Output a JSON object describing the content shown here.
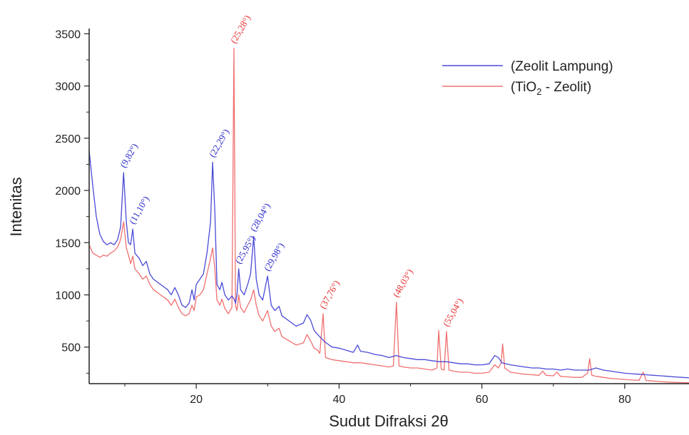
{
  "chart_data": {
    "type": "line",
    "title": "",
    "xlabel": "Sudut Difraksi 2θ",
    "ylabel": "Intenitas",
    "xlim": [
      5,
      89
    ],
    "ylim": [
      150,
      3550
    ],
    "x_ticks": [
      20,
      40,
      60,
      80
    ],
    "y_ticks": [
      500,
      1000,
      1500,
      2000,
      2500,
      3000,
      3500
    ],
    "grid": false,
    "legend_position": "top-right",
    "legend": [
      {
        "label": "(Zeolit Lampung)",
        "color": "#4a4ad8"
      },
      {
        "label_prefix": "(TiO",
        "label_sub": "2",
        "label_suffix": " - Zeolit)",
        "color": "#f07070"
      }
    ],
    "series": [
      {
        "name": "(Zeolit Lampung)",
        "color": "#4a4ad8",
        "points": [
          [
            5.0,
            2380
          ],
          [
            5.5,
            2050
          ],
          [
            6.0,
            1750
          ],
          [
            6.5,
            1580
          ],
          [
            7.0,
            1510
          ],
          [
            7.5,
            1480
          ],
          [
            8.0,
            1500
          ],
          [
            8.5,
            1480
          ],
          [
            9.0,
            1530
          ],
          [
            9.4,
            1650
          ],
          [
            9.82,
            2170
          ],
          [
            10.2,
            1700
          ],
          [
            10.5,
            1500
          ],
          [
            10.8,
            1480
          ],
          [
            11.1,
            1630
          ],
          [
            11.4,
            1400
          ],
          [
            12.0,
            1350
          ],
          [
            12.5,
            1280
          ],
          [
            13.0,
            1320
          ],
          [
            13.5,
            1200
          ],
          [
            14.0,
            1150
          ],
          [
            15.0,
            1100
          ],
          [
            16.0,
            1050
          ],
          [
            16.5,
            1000
          ],
          [
            17.0,
            1070
          ],
          [
            17.5,
            1000
          ],
          [
            18.0,
            900
          ],
          [
            18.5,
            880
          ],
          [
            19.0,
            920
          ],
          [
            19.4,
            1050
          ],
          [
            19.7,
            950
          ],
          [
            20.0,
            1100
          ],
          [
            20.5,
            1150
          ],
          [
            21.0,
            1200
          ],
          [
            21.5,
            1400
          ],
          [
            22.0,
            1700
          ],
          [
            22.29,
            2270
          ],
          [
            22.6,
            1800
          ],
          [
            22.9,
            1100
          ],
          [
            23.3,
            1050
          ],
          [
            23.6,
            1120
          ],
          [
            24.0,
            1000
          ],
          [
            24.5,
            950
          ],
          [
            25.0,
            990
          ],
          [
            25.3,
            960
          ],
          [
            25.5,
            920
          ],
          [
            25.7,
            1000
          ],
          [
            25.95,
            1250
          ],
          [
            26.2,
            1050
          ],
          [
            26.7,
            1000
          ],
          [
            27.2,
            1100
          ],
          [
            27.6,
            1200
          ],
          [
            28.04,
            1560
          ],
          [
            28.4,
            1150
          ],
          [
            28.8,
            1000
          ],
          [
            29.3,
            950
          ],
          [
            29.98,
            1180
          ],
          [
            30.5,
            900
          ],
          [
            31.0,
            850
          ],
          [
            31.6,
            890
          ],
          [
            32.0,
            800
          ],
          [
            33.0,
            750
          ],
          [
            34.0,
            700
          ],
          [
            35.0,
            730
          ],
          [
            35.5,
            810
          ],
          [
            36.0,
            760
          ],
          [
            36.5,
            660
          ],
          [
            37.0,
            620
          ],
          [
            38.0,
            550
          ],
          [
            39.0,
            500
          ],
          [
            40.0,
            490
          ],
          [
            41.0,
            470
          ],
          [
            42.0,
            450
          ],
          [
            42.6,
            520
          ],
          [
            43.0,
            460
          ],
          [
            44.0,
            450
          ],
          [
            45.0,
            430
          ],
          [
            46.0,
            420
          ],
          [
            47.0,
            400
          ],
          [
            48.0,
            420
          ],
          [
            49.0,
            400
          ],
          [
            50.0,
            390
          ],
          [
            51.0,
            380
          ],
          [
            52.0,
            380
          ],
          [
            53.0,
            370
          ],
          [
            54.0,
            360
          ],
          [
            55.0,
            360
          ],
          [
            56.0,
            350
          ],
          [
            57.0,
            340
          ],
          [
            58.0,
            340
          ],
          [
            59.0,
            330
          ],
          [
            60.0,
            330
          ],
          [
            61.0,
            340
          ],
          [
            61.8,
            420
          ],
          [
            62.3,
            400
          ],
          [
            62.8,
            350
          ],
          [
            64.0,
            330
          ],
          [
            65.0,
            320
          ],
          [
            66.0,
            310
          ],
          [
            67.0,
            300
          ],
          [
            68.0,
            300
          ],
          [
            69.0,
            290
          ],
          [
            70.0,
            290
          ],
          [
            71.0,
            280
          ],
          [
            72.0,
            290
          ],
          [
            73.0,
            280
          ],
          [
            74.0,
            280
          ],
          [
            75.0,
            280
          ],
          [
            76.0,
            300
          ],
          [
            77.0,
            280
          ],
          [
            78.0,
            270
          ],
          [
            79.0,
            260
          ],
          [
            80.0,
            250
          ],
          [
            81.0,
            245
          ],
          [
            82.0,
            240
          ],
          [
            83.0,
            235
          ],
          [
            84.0,
            230
          ],
          [
            85.0,
            225
          ],
          [
            86.0,
            220
          ],
          [
            87.0,
            215
          ],
          [
            88.0,
            210
          ],
          [
            89.0,
            205
          ]
        ]
      },
      {
        "name": "(TiO₂ - Zeolit)",
        "color": "#f07070",
        "points": [
          [
            5.0,
            1480
          ],
          [
            5.5,
            1400
          ],
          [
            6.0,
            1380
          ],
          [
            6.5,
            1360
          ],
          [
            7.0,
            1380
          ],
          [
            7.5,
            1370
          ],
          [
            8.0,
            1400
          ],
          [
            8.5,
            1420
          ],
          [
            9.0,
            1460
          ],
          [
            9.4,
            1530
          ],
          [
            9.82,
            1700
          ],
          [
            10.2,
            1450
          ],
          [
            10.5,
            1380
          ],
          [
            10.8,
            1300
          ],
          [
            11.1,
            1370
          ],
          [
            11.4,
            1250
          ],
          [
            12.0,
            1200
          ],
          [
            12.5,
            1150
          ],
          [
            13.0,
            1180
          ],
          [
            13.5,
            1100
          ],
          [
            14.0,
            1050
          ],
          [
            15.0,
            1000
          ],
          [
            16.0,
            950
          ],
          [
            16.5,
            900
          ],
          [
            17.0,
            960
          ],
          [
            17.5,
            880
          ],
          [
            18.0,
            820
          ],
          [
            18.5,
            800
          ],
          [
            19.0,
            820
          ],
          [
            19.4,
            900
          ],
          [
            19.7,
            850
          ],
          [
            20.0,
            980
          ],
          [
            20.5,
            1000
          ],
          [
            21.0,
            1050
          ],
          [
            21.5,
            1200
          ],
          [
            22.0,
            1350
          ],
          [
            22.29,
            1450
          ],
          [
            22.6,
            1250
          ],
          [
            22.9,
            950
          ],
          [
            23.3,
            900
          ],
          [
            23.6,
            960
          ],
          [
            24.0,
            870
          ],
          [
            24.5,
            820
          ],
          [
            25.0,
            880
          ],
          [
            25.28,
            3360
          ],
          [
            25.5,
            900
          ],
          [
            25.7,
            850
          ],
          [
            25.95,
            1000
          ],
          [
            26.2,
            880
          ],
          [
            26.7,
            830
          ],
          [
            27.2,
            900
          ],
          [
            27.6,
            950
          ],
          [
            28.04,
            1050
          ],
          [
            28.4,
            900
          ],
          [
            28.8,
            800
          ],
          [
            29.3,
            750
          ],
          [
            29.98,
            850
          ],
          [
            30.5,
            700
          ],
          [
            31.0,
            650
          ],
          [
            31.6,
            680
          ],
          [
            32.0,
            600
          ],
          [
            33.0,
            560
          ],
          [
            34.0,
            520
          ],
          [
            35.0,
            540
          ],
          [
            35.5,
            620
          ],
          [
            36.0,
            560
          ],
          [
            36.5,
            490
          ],
          [
            37.0,
            470
          ],
          [
            37.3,
            440
          ],
          [
            37.76,
            820
          ],
          [
            38.1,
            400
          ],
          [
            39.0,
            380
          ],
          [
            40.0,
            370
          ],
          [
            41.0,
            360
          ],
          [
            42.0,
            350
          ],
          [
            43.0,
            350
          ],
          [
            44.0,
            340
          ],
          [
            45.0,
            330
          ],
          [
            46.0,
            320
          ],
          [
            47.0,
            310
          ],
          [
            47.6,
            320
          ],
          [
            48.03,
            930
          ],
          [
            48.4,
            320
          ],
          [
            49.0,
            310
          ],
          [
            50.0,
            300
          ],
          [
            51.0,
            300
          ],
          [
            52.0,
            290
          ],
          [
            53.0,
            280
          ],
          [
            53.7,
            300
          ],
          [
            53.95,
            660
          ],
          [
            54.3,
            290
          ],
          [
            54.7,
            280
          ],
          [
            55.04,
            650
          ],
          [
            55.4,
            280
          ],
          [
            56.0,
            270
          ],
          [
            57.0,
            260
          ],
          [
            58.0,
            260
          ],
          [
            59.0,
            250
          ],
          [
            60.0,
            250
          ],
          [
            61.0,
            260
          ],
          [
            61.8,
            330
          ],
          [
            62.3,
            300
          ],
          [
            62.7,
            350
          ],
          [
            62.9,
            530
          ],
          [
            63.2,
            300
          ],
          [
            64.0,
            260
          ],
          [
            65.0,
            250
          ],
          [
            66.0,
            240
          ],
          [
            67.0,
            235
          ],
          [
            68.0,
            230
          ],
          [
            68.5,
            270
          ],
          [
            69.0,
            230
          ],
          [
            70.0,
            225
          ],
          [
            70.5,
            260
          ],
          [
            71.0,
            220
          ],
          [
            72.0,
            215
          ],
          [
            73.0,
            210
          ],
          [
            74.0,
            210
          ],
          [
            74.8,
            250
          ],
          [
            75.1,
            390
          ],
          [
            75.4,
            230
          ],
          [
            76.0,
            220
          ],
          [
            77.0,
            210
          ],
          [
            78.0,
            200
          ],
          [
            79.0,
            195
          ],
          [
            80.0,
            190
          ],
          [
            81.0,
            185
          ],
          [
            82.0,
            182
          ],
          [
            82.6,
            260
          ],
          [
            83.0,
            180
          ],
          [
            84.0,
            175
          ],
          [
            85.0,
            170
          ],
          [
            86.0,
            165
          ],
          [
            87.0,
            162
          ],
          [
            88.0,
            160
          ],
          [
            89.0,
            158
          ]
        ]
      }
    ],
    "annotations": [
      {
        "text": "(9,82°)",
        "x": 9.82,
        "y": 2170,
        "series": "blue"
      },
      {
        "text": "(11,10°)",
        "x": 11.1,
        "y": 1630,
        "series": "blue"
      },
      {
        "text": "(22,29°)",
        "x": 22.29,
        "y": 2270,
        "series": "blue"
      },
      {
        "text": "(25,28°)",
        "x": 25.28,
        "y": 3360,
        "series": "red"
      },
      {
        "text": "(25,95°)",
        "x": 25.95,
        "y": 1250,
        "series": "blue"
      },
      {
        "text": "(28,04°)",
        "x": 28.04,
        "y": 1560,
        "series": "blue"
      },
      {
        "text": "(29,98°)",
        "x": 29.98,
        "y": 1180,
        "series": "blue"
      },
      {
        "text": "(37,76°)",
        "x": 37.76,
        "y": 820,
        "series": "red"
      },
      {
        "text": "(48,03°)",
        "x": 48.03,
        "y": 930,
        "series": "red"
      },
      {
        "text": "(55,04°)",
        "x": 55.04,
        "y": 650,
        "series": "red"
      }
    ]
  }
}
